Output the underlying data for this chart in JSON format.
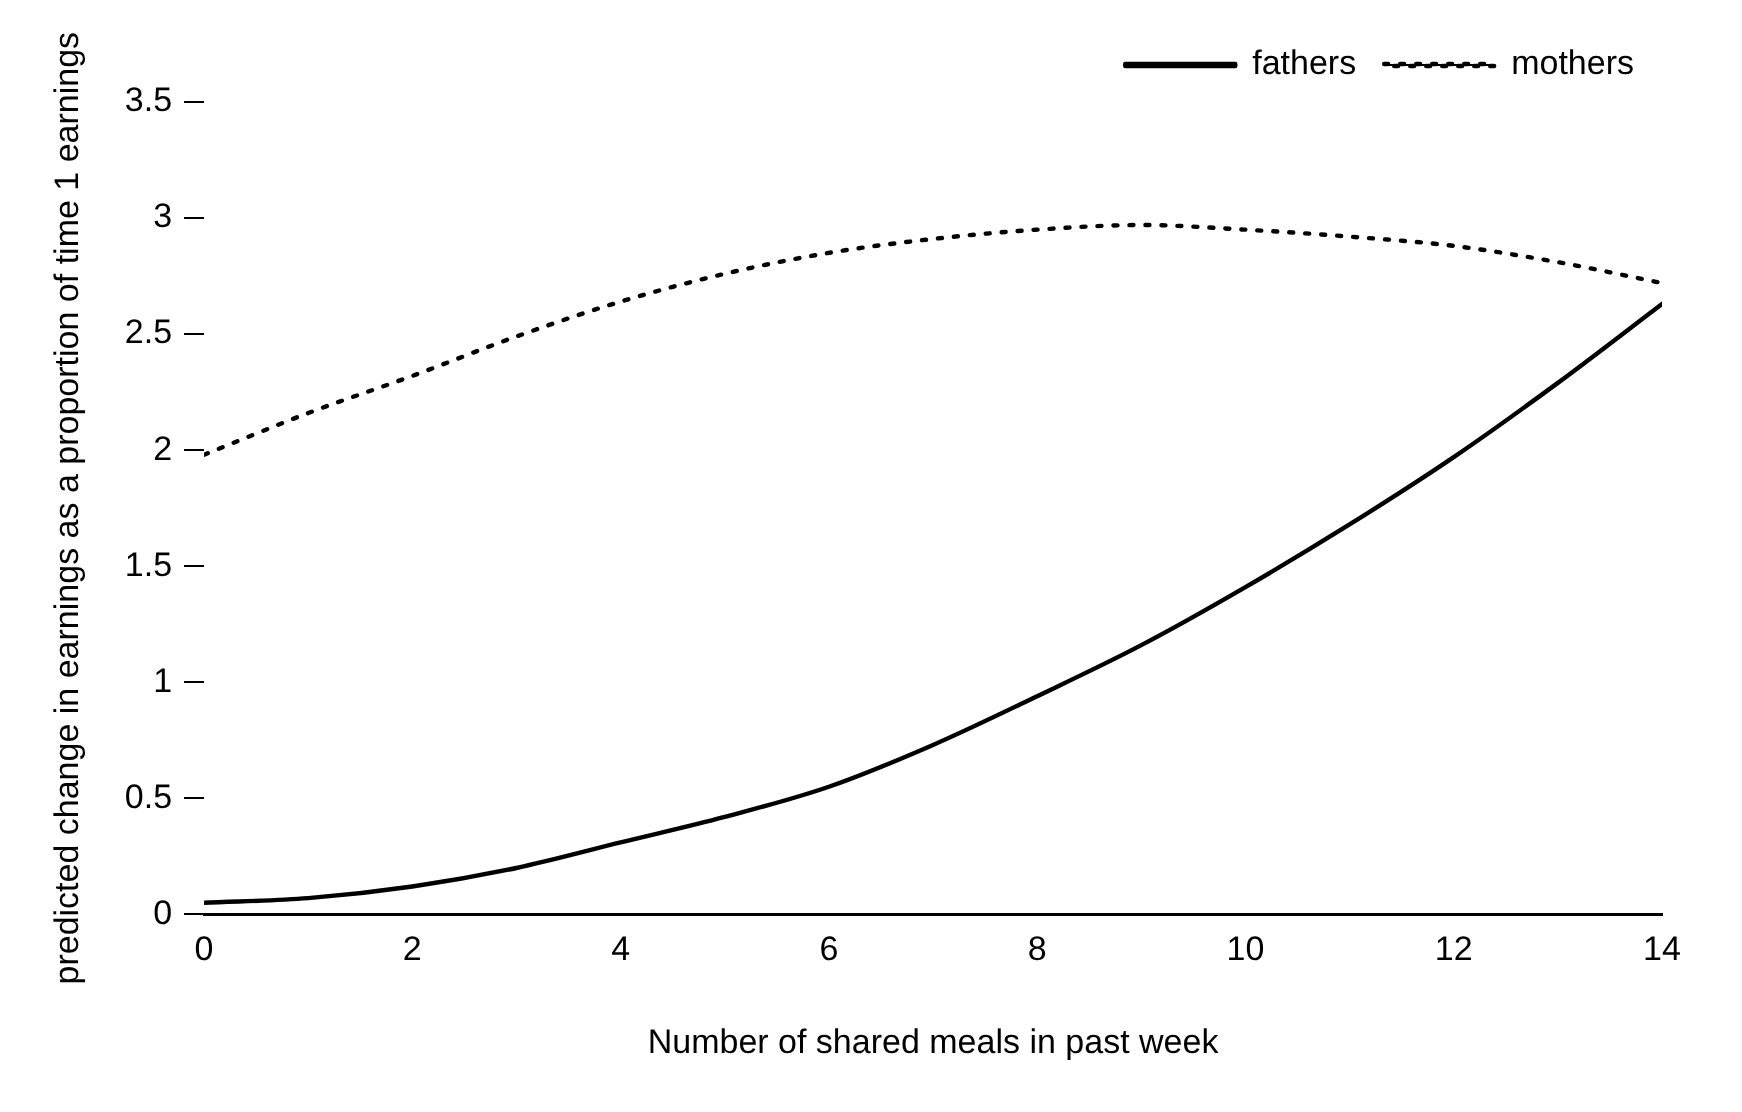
{
  "chart_data": {
    "type": "line",
    "xlabel": "Number of shared meals in past week",
    "ylabel": "predicted change in earnings as a proportion of time 1 earnings",
    "x": [
      0,
      1,
      2,
      3,
      4,
      5,
      6,
      7,
      8,
      9,
      10,
      11,
      12,
      13,
      14
    ],
    "series": [
      {
        "name": "fathers",
        "color": "#000000",
        "line_style": "solid",
        "values": [
          0.05,
          0.07,
          0.12,
          0.2,
          0.31,
          0.42,
          0.55,
          0.73,
          0.94,
          1.16,
          1.41,
          1.68,
          1.97,
          2.29,
          2.63
        ]
      },
      {
        "name": "mothers",
        "color": "#000000",
        "line_style": "dotted",
        "values": [
          1.98,
          2.16,
          2.32,
          2.49,
          2.64,
          2.76,
          2.85,
          2.91,
          2.95,
          2.97,
          2.95,
          2.92,
          2.88,
          2.81,
          2.72
        ]
      }
    ],
    "xlim": [
      0,
      14
    ],
    "xticks": [
      0,
      2,
      4,
      6,
      8,
      10,
      12,
      14
    ],
    "ylim": [
      0,
      3.5
    ],
    "yticks": [
      0,
      0.5,
      1,
      1.5,
      2,
      2.5,
      3,
      3.5
    ],
    "grid": false,
    "legend": "top right",
    "marker": "none"
  }
}
